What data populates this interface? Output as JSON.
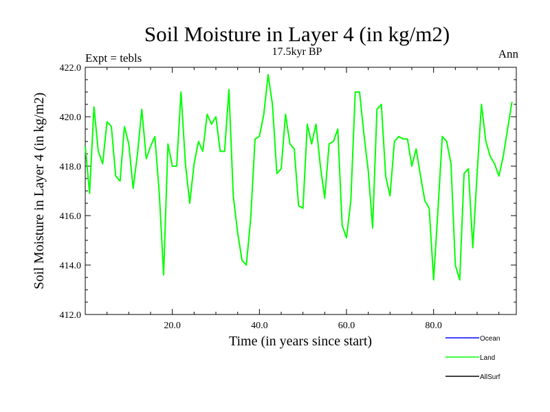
{
  "chart_data": {
    "type": "line",
    "title": "Soil Moisture in Layer 4 (in kg/m2)",
    "subtitle": "17.5kyr BP",
    "left_label": "Expt = tebls",
    "right_label": "Ann",
    "xlabel": "Time (in years since start)",
    "ylabel": "Soil Moisture in Layer 4 (in kg/m2)",
    "xlim": [
      0,
      99
    ],
    "ylim": [
      412,
      422
    ],
    "xticks": [
      20,
      40,
      60,
      80
    ],
    "xtick_labels": [
      "20.0",
      "40.0",
      "60.0",
      "80.0"
    ],
    "yticks": [
      412,
      414,
      416,
      418,
      420,
      422
    ],
    "ytick_labels": [
      "412.0",
      "414.0",
      "416.0",
      "418.0",
      "420.0",
      "422.0"
    ],
    "legend": [
      {
        "name": "Ocean",
        "color": "#0000ff"
      },
      {
        "name": "Land",
        "color": "#00ff00"
      },
      {
        "name": "AllSurf",
        "color": "#000000"
      }
    ],
    "series": [
      {
        "name": "Land",
        "color": "#00ff00",
        "x_start": 0,
        "x_step": 1,
        "values": [
          418.8,
          416.9,
          420.4,
          418.6,
          418.1,
          419.8,
          419.6,
          417.6,
          417.4,
          419.6,
          418.9,
          417.1,
          418.5,
          420.3,
          418.3,
          418.8,
          419.2,
          416.9,
          413.6,
          418.9,
          418.0,
          418.0,
          421.0,
          418.1,
          416.5,
          418.1,
          419.0,
          418.6,
          420.1,
          419.7,
          420.0,
          418.6,
          418.6,
          421.1,
          416.8,
          415.3,
          414.2,
          414.0,
          415.9,
          419.1,
          419.2,
          420.1,
          421.7,
          420.5,
          417.7,
          417.9,
          420.1,
          418.9,
          418.7,
          416.4,
          416.3,
          419.7,
          418.9,
          419.7,
          418.0,
          416.7,
          418.9,
          419.0,
          419.5,
          415.6,
          415.1,
          416.6,
          421.0,
          421.0,
          419.3,
          417.8,
          415.5,
          420.3,
          420.5,
          417.6,
          416.8,
          419.0,
          419.2,
          419.1,
          419.1,
          418.0,
          418.7,
          417.6,
          416.6,
          416.3,
          413.4,
          416.2,
          419.2,
          419.0,
          418.1,
          414.0,
          413.4,
          417.7,
          417.9,
          414.7,
          417.7,
          420.5,
          419.0,
          418.4,
          418.1,
          417.6,
          418.4,
          419.5,
          420.6
        ]
      }
    ]
  }
}
